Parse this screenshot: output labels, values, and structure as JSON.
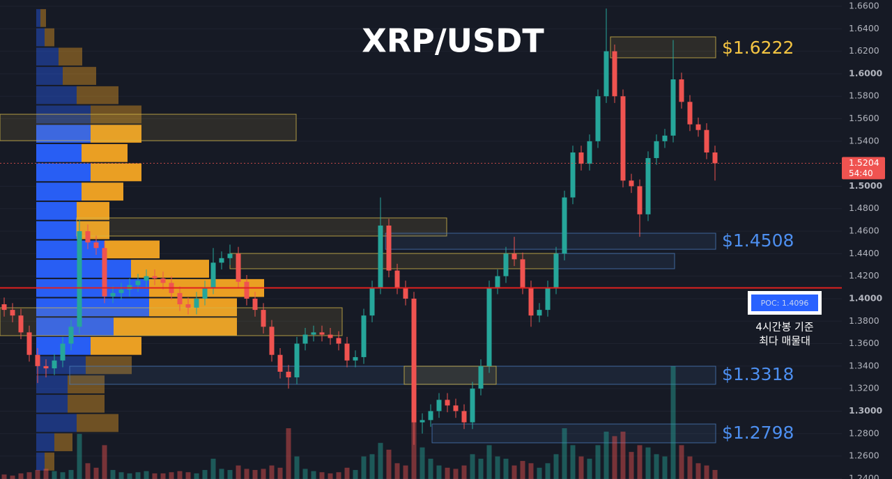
{
  "chart_data": {
    "type": "candlestick",
    "title": "XRP/USDT",
    "ylim": [
      1.2396,
      1.6656
    ],
    "yticks": [
      {
        "value": 1.66,
        "label": "1.6600"
      },
      {
        "value": 1.64,
        "label": "1.6400"
      },
      {
        "value": 1.62,
        "label": "1.6200"
      },
      {
        "value": 1.6,
        "label": "1.6000"
      },
      {
        "value": 1.58,
        "label": "1.5800"
      },
      {
        "value": 1.56,
        "label": "1.5600"
      },
      {
        "value": 1.54,
        "label": "1.5400"
      },
      {
        "value": 1.5,
        "label": "1.5000"
      },
      {
        "value": 1.48,
        "label": "1.4800"
      },
      {
        "value": 1.46,
        "label": "1.4600"
      },
      {
        "value": 1.44,
        "label": "1.4400"
      },
      {
        "value": 1.42,
        "label": "1.4200"
      },
      {
        "value": 1.4,
        "label": "1.4000"
      },
      {
        "value": 1.38,
        "label": "1.3800"
      },
      {
        "value": 1.36,
        "label": "1.3600"
      },
      {
        "value": 1.34,
        "label": "1.3400"
      },
      {
        "value": 1.32,
        "label": "1.3200"
      },
      {
        "value": 1.3,
        "label": "1.3000"
      },
      {
        "value": 1.28,
        "label": "1.2800"
      },
      {
        "value": 1.26,
        "label": "1.2600"
      },
      {
        "value": 1.24,
        "label": "1.2400"
      }
    ],
    "up_color": "#26a69a",
    "down_color": "#ef5350",
    "open": [
      1.395,
      1.39,
      1.385,
      1.37,
      1.35,
      1.34,
      1.338,
      1.345,
      1.36,
      1.375,
      1.46,
      1.45,
      1.445,
      1.402,
      1.405,
      1.408,
      1.412,
      1.416,
      1.42,
      1.418,
      1.414,
      1.405,
      1.395,
      1.392,
      1.4,
      1.41,
      1.432,
      1.436,
      1.44,
      1.415,
      1.4,
      1.39,
      1.375,
      1.35,
      1.335,
      1.33,
      1.36,
      1.368,
      1.37,
      1.368,
      1.365,
      1.36,
      1.345,
      1.348,
      1.385,
      1.41,
      1.465,
      1.425,
      1.41,
      1.4,
      1.29,
      1.292,
      1.3,
      1.31,
      1.305,
      1.3,
      1.29,
      1.32,
      1.34,
      1.41,
      1.42,
      1.44,
      1.435,
      1.41,
      1.385,
      1.39,
      1.41,
      1.44,
      1.49,
      1.53,
      1.52,
      1.54,
      1.58,
      1.62,
      1.58,
      1.505,
      1.5,
      1.475,
      1.525,
      1.54,
      1.545,
      1.595,
      1.575,
      1.555,
      1.55,
      1.53
    ],
    "high": [
      1.401,
      1.396,
      1.391,
      1.376,
      1.356,
      1.346,
      1.351,
      1.366,
      1.381,
      1.47,
      1.466,
      1.456,
      1.451,
      1.411,
      1.414,
      1.418,
      1.422,
      1.426,
      1.426,
      1.424,
      1.42,
      1.411,
      1.401,
      1.406,
      1.416,
      1.445,
      1.442,
      1.448,
      1.446,
      1.421,
      1.406,
      1.396,
      1.381,
      1.356,
      1.341,
      1.366,
      1.374,
      1.376,
      1.376,
      1.374,
      1.371,
      1.366,
      1.354,
      1.391,
      1.416,
      1.49,
      1.471,
      1.431,
      1.416,
      1.406,
      1.298,
      1.306,
      1.316,
      1.316,
      1.311,
      1.306,
      1.326,
      1.346,
      1.416,
      1.426,
      1.446,
      1.455,
      1.441,
      1.416,
      1.396,
      1.416,
      1.446,
      1.496,
      1.536,
      1.536,
      1.546,
      1.586,
      1.658,
      1.626,
      1.586,
      1.511,
      1.506,
      1.531,
      1.546,
      1.551,
      1.63,
      1.601,
      1.581,
      1.561,
      1.556,
      1.536
    ],
    "low": [
      1.384,
      1.379,
      1.364,
      1.344,
      1.325,
      1.33,
      1.332,
      1.339,
      1.354,
      1.369,
      1.444,
      1.439,
      1.396,
      1.396,
      1.399,
      1.402,
      1.406,
      1.41,
      1.412,
      1.408,
      1.399,
      1.389,
      1.386,
      1.386,
      1.394,
      1.404,
      1.426,
      1.43,
      1.409,
      1.394,
      1.384,
      1.369,
      1.344,
      1.329,
      1.32,
      1.324,
      1.354,
      1.362,
      1.362,
      1.359,
      1.354,
      1.339,
      1.339,
      1.342,
      1.379,
      1.404,
      1.419,
      1.404,
      1.394,
      1.27,
      1.28,
      1.286,
      1.294,
      1.299,
      1.294,
      1.284,
      1.284,
      1.314,
      1.334,
      1.404,
      1.414,
      1.429,
      1.404,
      1.375,
      1.379,
      1.384,
      1.404,
      1.434,
      1.484,
      1.514,
      1.514,
      1.534,
      1.574,
      1.574,
      1.499,
      1.494,
      1.455,
      1.469,
      1.519,
      1.534,
      1.539,
      1.569,
      1.549,
      1.544,
      1.524,
      1.505
    ],
    "close": [
      1.39,
      1.385,
      1.37,
      1.35,
      1.34,
      1.338,
      1.345,
      1.36,
      1.375,
      1.46,
      1.45,
      1.445,
      1.402,
      1.405,
      1.408,
      1.412,
      1.416,
      1.42,
      1.418,
      1.414,
      1.405,
      1.395,
      1.392,
      1.4,
      1.41,
      1.432,
      1.436,
      1.44,
      1.415,
      1.4,
      1.39,
      1.375,
      1.35,
      1.335,
      1.33,
      1.36,
      1.368,
      1.37,
      1.368,
      1.365,
      1.36,
      1.345,
      1.348,
      1.385,
      1.41,
      1.465,
      1.425,
      1.41,
      1.4,
      1.29,
      1.292,
      1.3,
      1.31,
      1.305,
      1.3,
      1.29,
      1.32,
      1.34,
      1.41,
      1.42,
      1.44,
      1.435,
      1.41,
      1.385,
      1.39,
      1.41,
      1.44,
      1.49,
      1.53,
      1.52,
      1.54,
      1.58,
      1.62,
      1.58,
      1.505,
      1.5,
      1.475,
      1.525,
      1.54,
      1.545,
      1.595,
      1.575,
      1.555,
      1.55,
      1.53,
      1.5204
    ],
    "volume": [
      4,
      3,
      5,
      6,
      8,
      9,
      7,
      6,
      8,
      40,
      14,
      10,
      30,
      8,
      6,
      5,
      6,
      7,
      5,
      5,
      6,
      7,
      6,
      5,
      8,
      18,
      9,
      8,
      12,
      9,
      8,
      9,
      12,
      10,
      45,
      20,
      9,
      7,
      6,
      5,
      6,
      10,
      8,
      20,
      22,
      32,
      26,
      14,
      12,
      55,
      28,
      18,
      12,
      10,
      9,
      12,
      22,
      18,
      30,
      20,
      18,
      12,
      16,
      14,
      10,
      14,
      22,
      45,
      30,
      20,
      18,
      30,
      42,
      38,
      42,
      24,
      30,
      28,
      22,
      20,
      100,
      30,
      20,
      14,
      12,
      8
    ],
    "profile": {
      "bins": [
        1.6581,
        1.641,
        1.6238,
        1.6067,
        1.5895,
        1.5724,
        1.5552,
        1.5381,
        1.5209,
        1.5038,
        1.4866,
        1.4695,
        1.4523,
        1.4352,
        1.418,
        1.4009,
        1.3837,
        1.3666,
        1.3494,
        1.3323,
        1.3151,
        1.298,
        1.2808,
        1.2637,
        1.2465
      ],
      "buy": [
        6,
        12,
        32,
        38,
        58,
        78,
        78,
        65,
        78,
        65,
        58,
        58,
        98,
        136,
        162,
        162,
        111,
        78,
        71,
        45,
        45,
        58,
        26,
        12
      ],
      "sell": [
        8,
        14,
        34,
        48,
        60,
        73,
        73,
        66,
        73,
        60,
        47,
        47,
        79,
        112,
        165,
        126,
        177,
        73,
        66,
        53,
        53,
        60,
        26,
        14
      ],
      "buy_color": "#2962ff",
      "sell_color": "#f5a623",
      "value_area": [
        1.3494,
        1.5552
      ]
    },
    "zones": [
      {
        "top": 1.6328,
        "bottom": 1.6142,
        "color": "#d4b84a"
      },
      {
        "top": 1.564,
        "bottom": 1.5405,
        "color": "#d4b84a"
      },
      {
        "top": 1.4718,
        "bottom": 1.4557,
        "color": "#d4b84a"
      },
      {
        "top": 1.4582,
        "bottom": 1.4439,
        "color": "#4a78b8"
      },
      {
        "top": 1.4402,
        "bottom": 1.4266,
        "color": "#d4b84a"
      },
      {
        "top": 1.4402,
        "bottom": 1.4266,
        "color": "#4a78b8"
      },
      {
        "top": 1.3919,
        "bottom": 1.3671,
        "color": "#d4b84a"
      },
      {
        "top": 1.3399,
        "bottom": 1.3238,
        "color": "#4a78b8"
      },
      {
        "top": 1.3399,
        "bottom": 1.3238,
        "color": "#d4b84a"
      },
      {
        "top": 1.2885,
        "bottom": 1.2718,
        "color": "#4a78b8"
      }
    ],
    "levels": [
      {
        "value": 1.6222,
        "label": "$1.6222",
        "color": "#f5c542"
      },
      {
        "value": 1.4508,
        "label": "$1.4508",
        "color": "#4d8ff0"
      },
      {
        "value": 1.3318,
        "label": "$1.3318",
        "color": "#4d8ff0"
      },
      {
        "value": 1.2798,
        "label": "$1.2798",
        "color": "#4d8ff0"
      }
    ],
    "poc": {
      "value": 1.4096,
      "label": "POC: 1.4096",
      "color": "#e0201f",
      "note": [
        "4시간봉 기준",
        "최다 매물대"
      ]
    },
    "last_price": {
      "value": 1.5204,
      "label": "1.5204",
      "countdown": "54:40",
      "color": "#ef5350"
    }
  }
}
